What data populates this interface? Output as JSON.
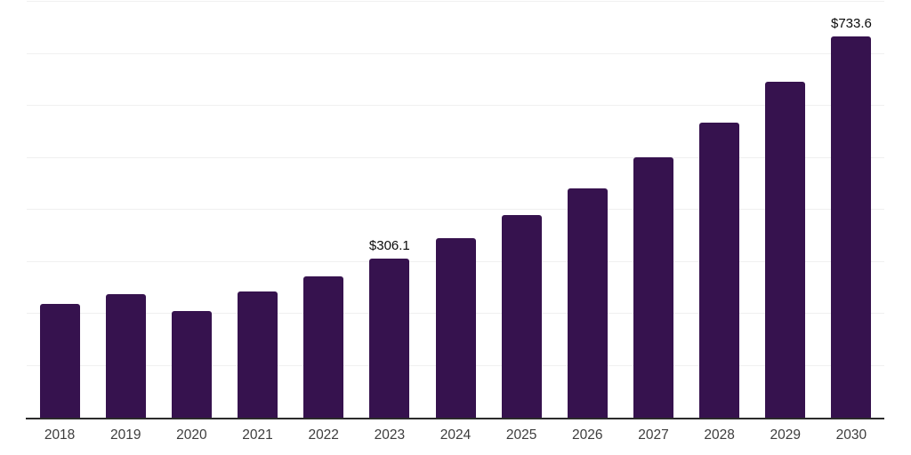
{
  "chart_data": {
    "type": "bar",
    "title": "",
    "xlabel": "",
    "ylabel": "",
    "categories": [
      "2018",
      "2019",
      "2020",
      "2021",
      "2022",
      "2023",
      "2024",
      "2025",
      "2026",
      "2027",
      "2028",
      "2029",
      "2030"
    ],
    "values": [
      218,
      238,
      206,
      243,
      272,
      306.1,
      346,
      390,
      441,
      501,
      567,
      646,
      733.6
    ],
    "data_labels": {
      "2023": "$306.1",
      "2030": "$733.6"
    },
    "ylim": [
      0,
      800
    ],
    "gridline_step": 100,
    "grid": "horizontal-only",
    "legend": "none",
    "bar_color": "#36124e",
    "gridline_color": "#f0f0f0",
    "axis_line_color": "#2b2b2b",
    "tick_label_color": "#3d3d3d",
    "data_label_color": "#0a0a0a",
    "background_color": "#ffffff"
  }
}
